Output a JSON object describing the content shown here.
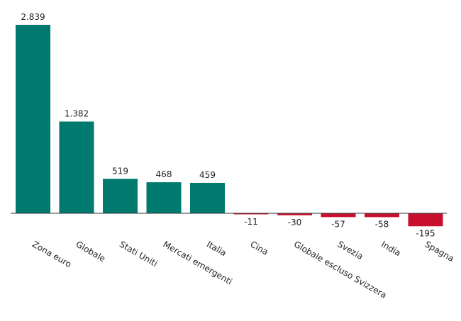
{
  "chart_data": {
    "type": "bar",
    "categories": [
      "Zona euro",
      "Globale",
      "Stati Uniti",
      "Mercati emergenti",
      "Italia",
      "Cina",
      "Globale escluso Svizzera",
      "Svezia",
      "India",
      "Spagna"
    ],
    "values": [
      2839,
      1382,
      519,
      468,
      459,
      -11,
      -30,
      -57,
      -58,
      -195
    ],
    "value_labels": [
      "2.839",
      "1.382",
      "519",
      "468",
      "459",
      "-11",
      "-30",
      "-57",
      "-58",
      "-195"
    ],
    "positive_color": "#007a6e",
    "negative_color": "#c8102e"
  }
}
